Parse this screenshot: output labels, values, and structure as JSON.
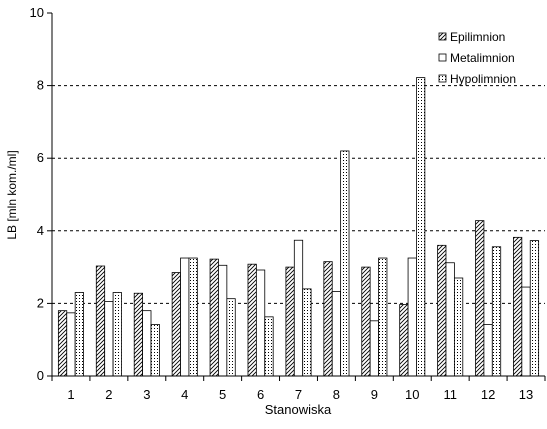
{
  "chart_data": {
    "type": "bar",
    "categories": [
      "1",
      "2",
      "3",
      "4",
      "5",
      "6",
      "7",
      "8",
      "9",
      "10",
      "11",
      "12",
      "13"
    ],
    "series": [
      {
        "name": "Epilimnion",
        "pattern": "hatch",
        "values": [
          1.8,
          3.03,
          2.28,
          2.85,
          3.22,
          3.08,
          3.0,
          3.15,
          3.0,
          1.97,
          3.6,
          4.28,
          3.82
        ]
      },
      {
        "name": "Metalimnion",
        "pattern": "blank",
        "values": [
          1.74,
          2.05,
          1.8,
          3.25,
          3.05,
          2.92,
          3.74,
          2.33,
          1.52,
          3.25,
          3.12,
          1.42,
          2.45
        ]
      },
      {
        "name": "Hypolimnion",
        "pattern": "dots",
        "values": [
          2.3,
          2.3,
          1.42,
          3.25,
          2.13,
          1.63,
          2.4,
          6.2,
          3.25,
          8.22,
          2.7,
          3.56,
          3.73
        ]
      }
    ],
    "title": "",
    "xlabel": "Stanowiska",
    "ylabel": "LB [mln kom./ml]",
    "ylim": [
      0,
      10
    ],
    "yticks": [
      "0",
      "2",
      "4",
      "6",
      "8",
      "10"
    ],
    "grid": "horizontal dashed",
    "legend_position": "top-right",
    "colors": {
      "bar_stroke": "#000000",
      "bar_fill": "#ffffff",
      "grid": "#000000"
    }
  }
}
